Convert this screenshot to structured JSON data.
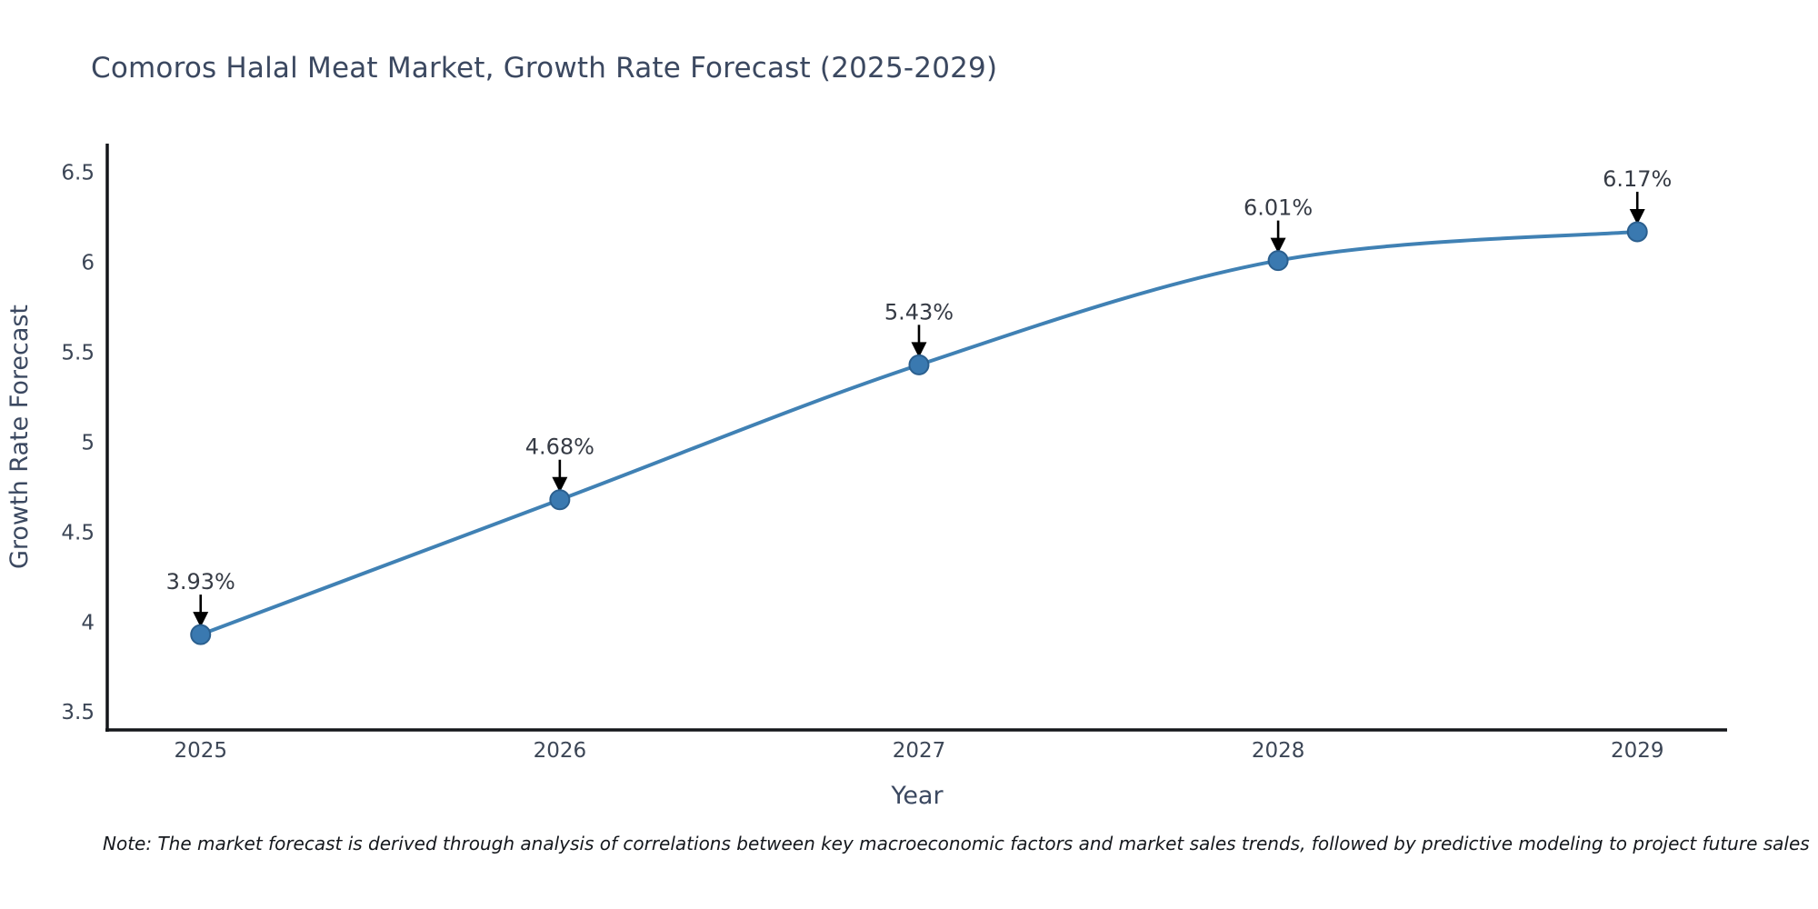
{
  "header": {
    "title": "Comoros Halal Meat Market, Growth Rate Forecast (2025-2029)"
  },
  "footnote": {
    "text": "Note: The market forecast is derived through analysis of correlations between key macroeconomic factors and market sales trends, followed by predictive modeling to project future sales"
  },
  "chart_data": {
    "type": "line",
    "title": "Comoros Halal Meat Market, Growth Rate Forecast (2025-2029)",
    "xlabel": "Year",
    "ylabel": "Growth Rate Forecast",
    "x": [
      2025,
      2026,
      2027,
      2028,
      2029
    ],
    "values": [
      3.93,
      4.68,
      5.43,
      6.01,
      6.17
    ],
    "point_labels": [
      "3.93%",
      "4.68%",
      "5.43%",
      "6.01%",
      "6.17%"
    ],
    "xtick_labels": [
      "2025",
      "2026",
      "2027",
      "2028",
      "2029"
    ],
    "yticks": [
      3.5,
      4,
      4.5,
      5,
      5.5,
      6,
      6.5
    ],
    "ytick_labels": [
      "3.5",
      "4",
      "4.5",
      "5",
      "5.5",
      "6",
      "6.5"
    ],
    "xlim": [
      2024.74,
      2029.25
    ],
    "ylim": [
      3.4,
      6.66
    ],
    "grid": false,
    "legend": "none",
    "annotation_style": "label-above-with-down-arrow",
    "colors": {
      "line": "#4081b4",
      "marker_fill": "#3a79b0",
      "marker_edge": "#2b5f8e",
      "arrow": "#000000",
      "annotation_text": "#363b45",
      "tick_text": "#3c4656",
      "axis_label_text": "#3b4860",
      "axis_spine": "#14161a",
      "background": "#ffffff"
    }
  }
}
